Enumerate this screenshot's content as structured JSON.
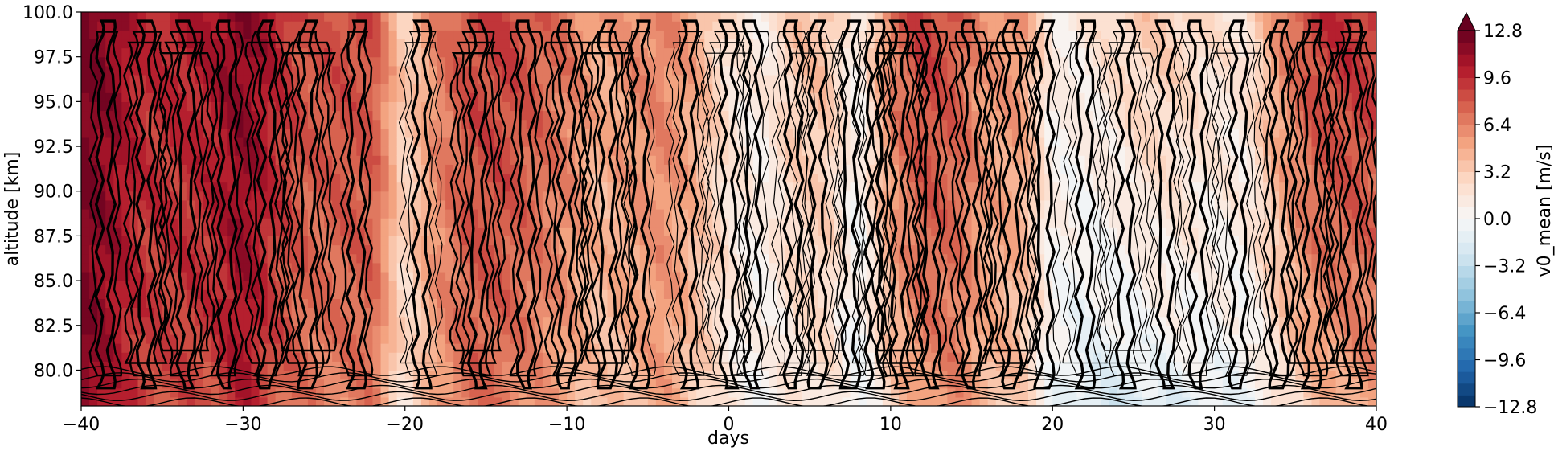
{
  "chart_data": {
    "type": "heatmap",
    "xlabel": "days",
    "ylabel": "altitude [km]",
    "xlim": [
      -40,
      40
    ],
    "ylim": [
      78,
      100
    ],
    "x_ticks": [
      -40,
      -30,
      -20,
      -10,
      0,
      10,
      20,
      30,
      40
    ],
    "x_tick_labels": [
      "−40",
      "−30",
      "−20",
      "−10",
      "0",
      "10",
      "20",
      "30",
      "40"
    ],
    "y_ticks": [
      80.0,
      82.5,
      85.0,
      87.5,
      90.0,
      92.5,
      95.0,
      97.5,
      100.0
    ],
    "y_tick_labels": [
      "80.0",
      "82.5",
      "85.0",
      "87.5",
      "90.0",
      "92.5",
      "95.0",
      "97.5",
      "100.0"
    ],
    "colorbar": {
      "label": "v0_mean [m/s]",
      "cmap": "RdBu_r",
      "range": [
        -12.8,
        12.8
      ],
      "ticks": [
        -12.8,
        -9.6,
        -6.4,
        -3.2,
        0.0,
        3.2,
        6.4,
        9.6,
        12.8
      ],
      "tick_labels": [
        "−12.8",
        "−9.6",
        "−6.4",
        "−3.2",
        "0.0",
        "3.2",
        "6.4",
        "9.6",
        "12.8"
      ],
      "extend": "max"
    },
    "column_days": [
      -40,
      -38,
      -36,
      -34,
      -32,
      -30,
      -28,
      -26,
      -24,
      -22,
      -20,
      -18,
      -16,
      -14,
      -12,
      -10,
      -8,
      -6,
      -4,
      -2,
      0,
      2,
      4,
      6,
      8,
      10,
      12,
      14,
      16,
      18,
      20,
      22,
      24,
      26,
      28,
      30,
      32,
      34,
      36,
      38,
      40
    ],
    "upper_level_v0": [
      12.5,
      11.5,
      9.5,
      10,
      10.5,
      12,
      10,
      8,
      8.5,
      8.5,
      3,
      6.5,
      8.5,
      9,
      8,
      7,
      5,
      6,
      6.5,
      5,
      2,
      1,
      3.5,
      4,
      0.5,
      7,
      9,
      8,
      5.5,
      6,
      1,
      1.5,
      2.5,
      3.5,
      3,
      2,
      2,
      6,
      9,
      9.5,
      9
    ],
    "lower_level_v0": [
      12,
      10,
      8.5,
      8,
      8,
      10,
      7.5,
      6.5,
      6,
      6.5,
      1.5,
      5,
      7,
      6.5,
      5.5,
      4.5,
      3,
      4,
      5,
      3,
      1,
      0,
      1,
      1.5,
      -1,
      2.5,
      5,
      6,
      4,
      3,
      -0.5,
      -2,
      -2.5,
      -2,
      -1.5,
      -1,
      -1,
      1,
      3,
      4,
      5
    ]
  }
}
